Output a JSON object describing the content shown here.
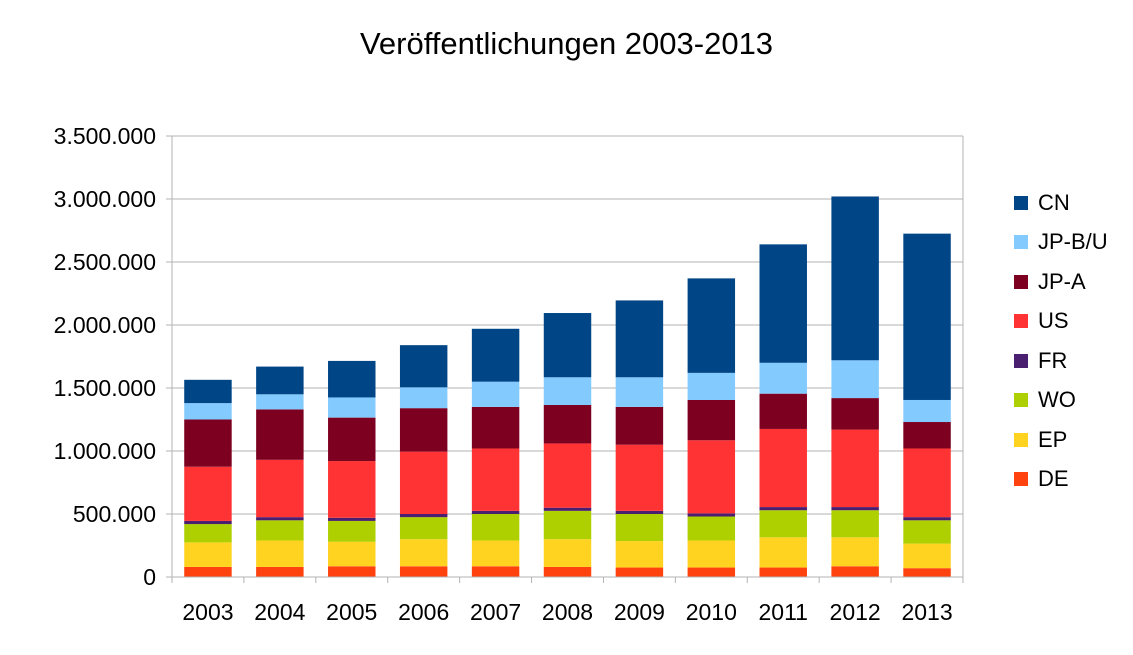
{
  "chart_data": {
    "type": "bar",
    "stacked": true,
    "title": "Veröffentlichungen 2003-2013",
    "xlabel": "",
    "ylabel": "",
    "ylim": [
      0,
      3500000
    ],
    "yticks": [
      0,
      500000,
      1000000,
      1500000,
      2000000,
      2500000,
      3000000,
      3500000
    ],
    "ytick_labels": [
      "0",
      "500.000",
      "1.000.000",
      "1.500.000",
      "2.000.000",
      "2.500.000",
      "3.000.000",
      "3.500.000"
    ],
    "grid": true,
    "legend_position": "right",
    "categories": [
      "2003",
      "2004",
      "2005",
      "2006",
      "2007",
      "2008",
      "2009",
      "2010",
      "2011",
      "2012",
      "2013"
    ],
    "series": [
      {
        "name": "DE",
        "color": "#ff420e",
        "values": [
          80000,
          80000,
          85000,
          85000,
          85000,
          80000,
          75000,
          75000,
          75000,
          85000,
          70000
        ]
      },
      {
        "name": "EP",
        "color": "#ffd320",
        "values": [
          195000,
          210000,
          195000,
          215000,
          205000,
          220000,
          210000,
          215000,
          240000,
          230000,
          195000
        ]
      },
      {
        "name": "WO",
        "color": "#aecf00",
        "values": [
          145000,
          160000,
          165000,
          175000,
          210000,
          225000,
          215000,
          190000,
          215000,
          215000,
          185000
        ]
      },
      {
        "name": "FR",
        "color": "#4b1f6f",
        "values": [
          25000,
          25000,
          25000,
          25000,
          25000,
          25000,
          25000,
          25000,
          25000,
          25000,
          25000
        ]
      },
      {
        "name": "US",
        "color": "#ff3333",
        "values": [
          430000,
          455000,
          450000,
          495000,
          495000,
          510000,
          525000,
          580000,
          620000,
          615000,
          545000
        ]
      },
      {
        "name": "JP-A",
        "color": "#7e0021",
        "values": [
          375000,
          400000,
          345000,
          345000,
          330000,
          305000,
          300000,
          320000,
          280000,
          250000,
          210000
        ]
      },
      {
        "name": "JP-B/U",
        "color": "#83caff",
        "values": [
          130000,
          120000,
          160000,
          165000,
          200000,
          220000,
          235000,
          215000,
          245000,
          300000,
          175000
        ]
      },
      {
        "name": "CN",
        "color": "#004586",
        "values": [
          185000,
          220000,
          290000,
          335000,
          420000,
          510000,
          610000,
          750000,
          940000,
          1300000,
          1320000
        ]
      }
    ]
  }
}
